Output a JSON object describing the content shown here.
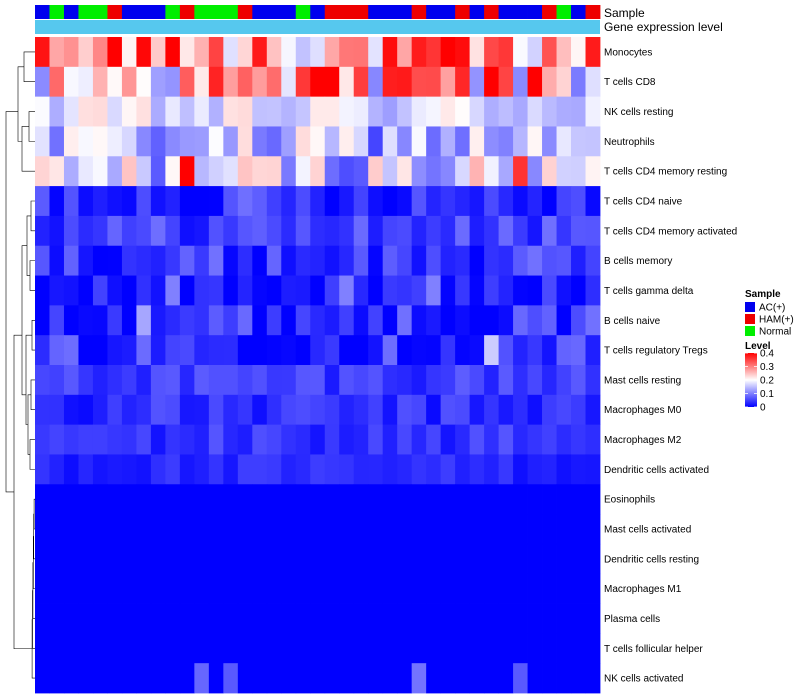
{
  "chart_data": {
    "type": "heatmap",
    "annotation_labels": [
      "Sample",
      "Gene expression level"
    ],
    "rows": [
      "Monocytes",
      "T cells CD8",
      "NK cells resting",
      "Neutrophils",
      "T cells CD4 memory resting",
      "T cells CD4 naive",
      "T cells CD4 memory activated",
      "B cells memory",
      "T cells gamma delta",
      "B cells naive",
      "T cells regulatory  Tregs",
      "Mast cells resting",
      "Macrophages M0",
      "Macrophages M2",
      "Dendritic cells activated",
      "Eosinophils",
      "Mast cells activated",
      "Dendritic cells resting",
      "Macrophages M1",
      "Plasma cells",
      "T cells follicular helper",
      "NK cells activated"
    ],
    "sample_groups": [
      "AC(+)",
      "Normal",
      "AC(+)",
      "Normal",
      "Normal",
      "HAM(+)",
      "AC(+)",
      "AC(+)",
      "AC(+)",
      "Normal",
      "HAM(+)",
      "Normal",
      "Normal",
      "Normal",
      "HAM(+)",
      "AC(+)",
      "AC(+)",
      "AC(+)",
      "Normal",
      "AC(+)",
      "HAM(+)",
      "HAM(+)",
      "HAM(+)",
      "AC(+)",
      "AC(+)",
      "AC(+)",
      "HAM(+)",
      "AC(+)",
      "AC(+)",
      "HAM(+)",
      "AC(+)",
      "HAM(+)",
      "AC(+)",
      "AC(+)",
      "AC(+)",
      "HAM(+)",
      "Normal",
      "AC(+)",
      "HAM(+)"
    ],
    "sample_legend": {
      "title": "Sample",
      "entries": [
        {
          "name": "AC(+)",
          "color": "#0000ee"
        },
        {
          "name": "HAM(+)",
          "color": "#ee0000"
        },
        {
          "name": "Normal",
          "color": "#00ee00"
        }
      ]
    },
    "expression_bar_color": "#56c8ee",
    "level_legend": {
      "title": "Level",
      "ticks": [
        "0.4",
        "0.3",
        "0.2",
        "0.1",
        "0"
      ],
      "range": [
        0,
        0.4
      ],
      "colors": [
        "#0000ff",
        "#ffffff",
        "#ff0000"
      ]
    },
    "row_base": [
      0.27,
      0.24,
      0.17,
      0.14,
      0.16,
      0.04,
      0.05,
      0.04,
      0.02,
      0.04,
      0.04,
      0.05,
      0.035,
      0.04,
      0.03,
      0.0,
      0.0,
      0.0,
      0.0,
      0.0,
      0.0,
      0.0
    ],
    "row_spread": [
      0.13,
      0.16,
      0.06,
      0.09,
      0.1,
      0.05,
      0.04,
      0.05,
      0.04,
      0.05,
      0.05,
      0.03,
      0.03,
      0.03,
      0.02,
      0.0,
      0.0,
      0.0,
      0.0,
      0.0,
      0.0,
      0.0
    ],
    "highlights": [
      {
        "row": 0,
        "col": 5,
        "value": 0.4
      },
      {
        "row": 0,
        "col": 9,
        "value": 0.4
      },
      {
        "row": 0,
        "col": 28,
        "value": 0.4
      },
      {
        "row": 0,
        "col": 15,
        "value": 0.38
      },
      {
        "row": 1,
        "col": 19,
        "value": 0.4
      },
      {
        "row": 1,
        "col": 20,
        "value": 0.4
      },
      {
        "row": 1,
        "col": 25,
        "value": 0.38
      },
      {
        "row": 1,
        "col": 31,
        "value": 0.4
      },
      {
        "row": 1,
        "col": 34,
        "value": 0.4
      },
      {
        "row": 4,
        "col": 10,
        "value": 0.4
      },
      {
        "row": 4,
        "col": 33,
        "value": 0.36
      },
      {
        "row": 8,
        "col": 21,
        "value": 0.1
      },
      {
        "row": 8,
        "col": 27,
        "value": 0.1
      },
      {
        "row": 8,
        "col": 9,
        "value": 0.1
      },
      {
        "row": 10,
        "col": 31,
        "value": 0.16
      },
      {
        "row": 9,
        "col": 7,
        "value": 0.13
      },
      {
        "row": 21,
        "col": 11,
        "value": 0.08
      },
      {
        "row": 21,
        "col": 13,
        "value": 0.07
      },
      {
        "row": 21,
        "col": 26,
        "value": 0.09
      },
      {
        "row": 21,
        "col": 33,
        "value": 0.07
      }
    ]
  }
}
